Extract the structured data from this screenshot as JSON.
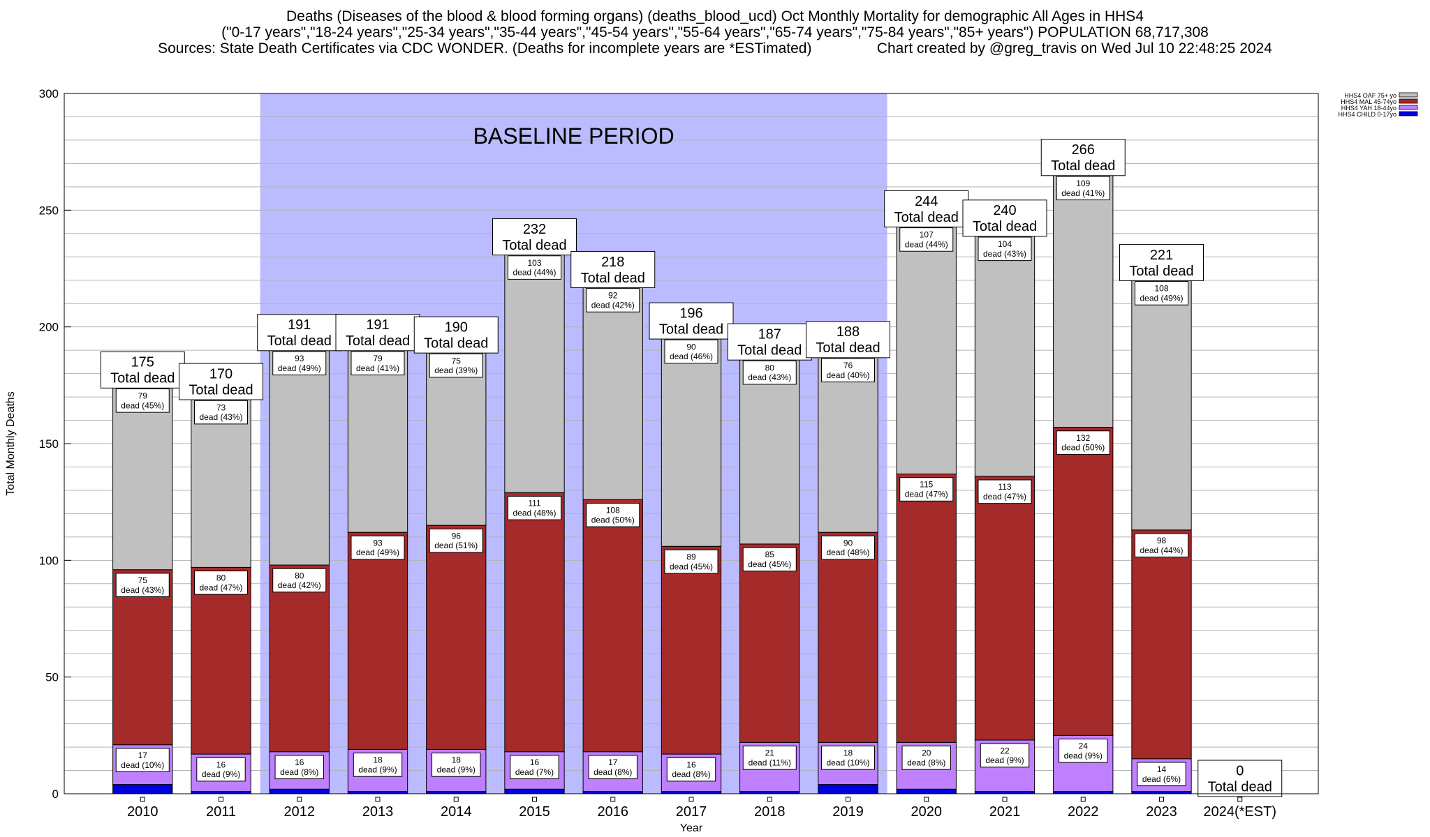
{
  "title": {
    "line1": "Deaths (Diseases of the blood & blood forming organs) (deaths_blood_ucd) Oct Monthly Mortality for demographic All Ages in HHS4",
    "line2": "(\"0-17 years\",\"18-24 years\",\"25-34 years\",\"35-44 years\",\"45-54 years\",\"55-64 years\",\"65-74 years\",\"75-84 years\",\"85+ years\") POPULATION 68,717,308",
    "line3": "Sources: State Death Certificates via CDC WONDER. (Deaths for incomplete years are *ESTimated)                Chart created by @greg_travis on Wed Jul 10 22:48:25 2024"
  },
  "chart_data": {
    "type": "bar",
    "stacked": true,
    "xlabel": "Year",
    "ylabel": "Total Monthly Deaths",
    "ylim": [
      0,
      300
    ],
    "yticks": [
      0,
      50,
      100,
      150,
      200,
      250,
      300
    ],
    "categories": [
      "2010",
      "2011",
      "2012",
      "2013",
      "2014",
      "2015",
      "2016",
      "2017",
      "2018",
      "2019",
      "2020",
      "2021",
      "2022",
      "2023",
      "2024(*EST)"
    ],
    "series": [
      {
        "name": "HHS4 CHILD 0-17yo",
        "color": "#0000dd",
        "values": [
          4,
          1,
          2,
          1,
          1,
          2,
          1,
          1,
          1,
          4,
          2,
          1,
          1,
          1,
          0
        ]
      },
      {
        "name": "HHS4 YAH 18-44yo",
        "color": "#bf80ff",
        "values": [
          17,
          16,
          16,
          18,
          18,
          16,
          17,
          16,
          21,
          18,
          20,
          22,
          24,
          14,
          0
        ]
      },
      {
        "name": "HHS4 MAL 45-74yo",
        "color": "#a52a2a",
        "values": [
          75,
          80,
          80,
          93,
          96,
          111,
          108,
          89,
          85,
          90,
          115,
          113,
          132,
          98,
          0
        ]
      },
      {
        "name": "HHS4 OAF 75+ yo",
        "color": "#c0c0c0",
        "values": [
          79,
          73,
          93,
          79,
          75,
          103,
          92,
          90,
          80,
          76,
          107,
          104,
          109,
          108,
          0
        ]
      }
    ],
    "segment_labels": {
      "HHS4 YAH 18-44yo": [
        "17\ndead (10%)",
        "16\ndead (9%)",
        "16\ndead (8%)",
        "18\ndead (9%)",
        "18\ndead (9%)",
        "16\ndead (7%)",
        "17\ndead (8%)",
        "16\ndead (8%)",
        "21\ndead (11%)",
        "18\ndead (10%)",
        "20\ndead (8%)",
        "22\ndead (9%)",
        "24\ndead (9%)",
        "14\ndead (6%)",
        ""
      ],
      "HHS4 MAL 45-74yo": [
        "75\ndead (43%)",
        "80\ndead (47%)",
        "80\ndead (42%)",
        "93\ndead (49%)",
        "96\ndead (51%)",
        "111\ndead (48%)",
        "108\ndead (50%)",
        "89\ndead (45%)",
        "85\ndead (45%)",
        "90\ndead (48%)",
        "115\ndead (47%)",
        "113\ndead (47%)",
        "132\ndead (50%)",
        "98\ndead (44%)",
        ""
      ],
      "HHS4 OAF 75+ yo": [
        "79\ndead (45%)",
        "73\ndead (43%)",
        "93\ndead (49%)",
        "79\ndead (41%)",
        "75\ndead (39%)",
        "103\ndead (44%)",
        "92\ndead (42%)",
        "90\ndead (46%)",
        "80\ndead (43%)",
        "76\ndead (40%)",
        "107\ndead (44%)",
        "104\ndead (43%)",
        "109\ndead (41%)",
        "108\ndead (49%)",
        ""
      ]
    },
    "totals": [
      175,
      170,
      191,
      191,
      190,
      232,
      218,
      196,
      187,
      188,
      244,
      240,
      266,
      221,
      0
    ],
    "total_suffix": "Total dead",
    "baseline": {
      "label": "BASELINE PERIOD",
      "from": "2012",
      "to": "2019",
      "color": "#bbbbff"
    },
    "legend": {
      "placement": "top-right",
      "order": [
        "HHS4 OAF 75+ yo",
        "HHS4 MAL 45-74yo",
        "HHS4 YAH 18-44yo",
        "HHS4 CHILD 0-17yo"
      ]
    },
    "grid": {
      "horizontal": true,
      "minor_step": 10
    }
  }
}
